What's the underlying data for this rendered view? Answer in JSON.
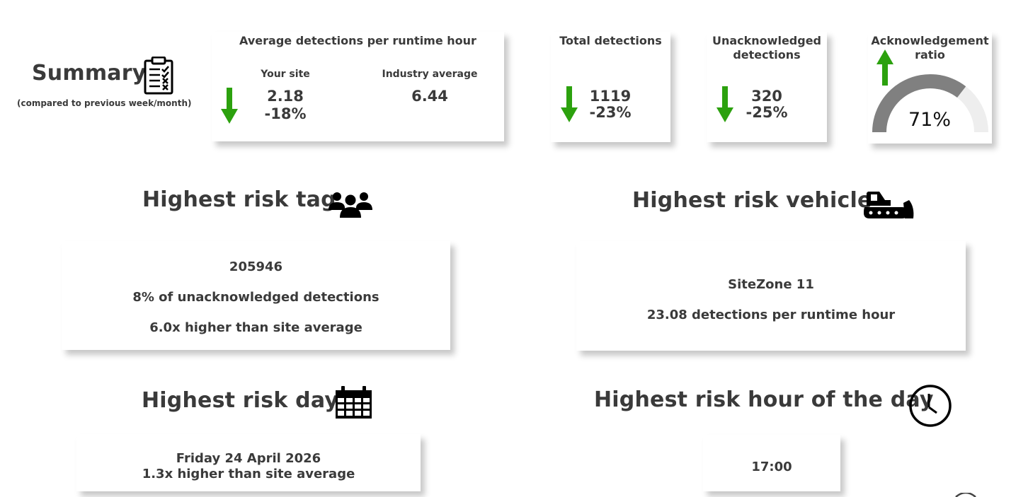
{
  "summary": {
    "title": "Summary",
    "subtitle": "(compared to previous week/month)"
  },
  "avg_detections": {
    "title": "Average detections per runtime hour",
    "your_site_label": "Your site",
    "your_site_value": "2.18",
    "your_site_change": "-18%",
    "industry_label": "Industry average",
    "industry_value": "6.44"
  },
  "total_detections": {
    "title": "Total detections",
    "value": "1119",
    "change": "-23%"
  },
  "unack_detections": {
    "title_line1": "Unacknowledged",
    "title_line2": "detections",
    "value": "320",
    "change": "-25%"
  },
  "ack_ratio": {
    "title_line1": "Acknowledgement",
    "title_line2": "ratio",
    "value": "71%",
    "fraction": 0.71
  },
  "risk_tag": {
    "heading": "Highest risk tag",
    "tag": "205946",
    "line2": "8% of unacknowledged detections",
    "line3": "6.0x higher than site average"
  },
  "risk_vehicle": {
    "heading": "Highest risk vehicle",
    "name": "SiteZone 11",
    "line2": "23.08 detections per runtime hour"
  },
  "risk_day": {
    "heading": "Highest risk day",
    "line1": "Friday 24 April 2026",
    "line2": "1.3x higher than site average"
  },
  "risk_hour": {
    "heading": "Highest risk hour of the day",
    "value": "17:00"
  },
  "colors": {
    "arrow_green": "#2ca10e",
    "gauge_fill": "#808080",
    "gauge_track": "#eeeeee"
  }
}
